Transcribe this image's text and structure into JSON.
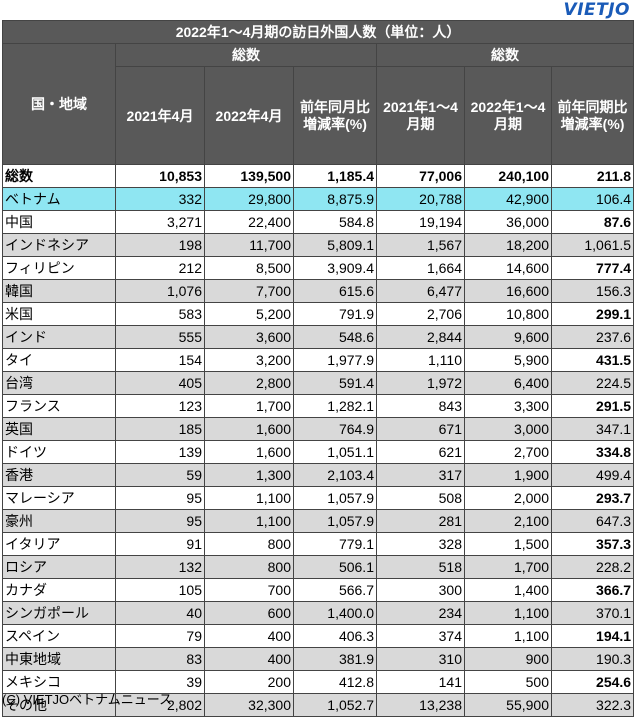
{
  "logo": "VIETJO",
  "title": "2022年1～4月期の訪日外国人数（単位：人）",
  "headers": {
    "region": "国・地域",
    "group_month": "総数",
    "group_period": "総数",
    "c1": "2021年4月",
    "c2": "2022年4月",
    "c3": "前年同月比増減率(%)",
    "c4": "2021年1～4月期",
    "c5": "2022年1～4月期",
    "c6": "前年同期比増減率(%)"
  },
  "rows": [
    {
      "name": "総数",
      "v1": "10,853",
      "v2": "139,500",
      "v3": "1,185.4",
      "v4": "77,006",
      "v5": "240,100",
      "v6": "211.8",
      "style": "total",
      "b6": true
    },
    {
      "name": "ベトナム",
      "v1": "332",
      "v2": "29,800",
      "v3": "8,875.9",
      "v4": "20,788",
      "v5": "42,900",
      "v6": "106.4",
      "style": "viet",
      "b6": false
    },
    {
      "name": "中国",
      "v1": "3,271",
      "v2": "22,400",
      "v3": "584.8",
      "v4": "19,194",
      "v5": "36,000",
      "v6": "87.6",
      "style": "white",
      "b6": true
    },
    {
      "name": "インドネシア",
      "v1": "198",
      "v2": "11,700",
      "v3": "5,809.1",
      "v4": "1,567",
      "v5": "18,200",
      "v6": "1,061.5",
      "style": "gray",
      "b6": false
    },
    {
      "name": "フィリピン",
      "v1": "212",
      "v2": "8,500",
      "v3": "3,909.4",
      "v4": "1,664",
      "v5": "14,600",
      "v6": "777.4",
      "style": "white",
      "b6": true
    },
    {
      "name": "韓国",
      "v1": "1,076",
      "v2": "7,700",
      "v3": "615.6",
      "v4": "6,477",
      "v5": "16,600",
      "v6": "156.3",
      "style": "gray",
      "b6": false
    },
    {
      "name": "米国",
      "v1": "583",
      "v2": "5,200",
      "v3": "791.9",
      "v4": "2,706",
      "v5": "10,800",
      "v6": "299.1",
      "style": "white",
      "b6": true
    },
    {
      "name": "インド",
      "v1": "555",
      "v2": "3,600",
      "v3": "548.6",
      "v4": "2,844",
      "v5": "9,600",
      "v6": "237.6",
      "style": "gray",
      "b6": false
    },
    {
      "name": "タイ",
      "v1": "154",
      "v2": "3,200",
      "v3": "1,977.9",
      "v4": "1,110",
      "v5": "5,900",
      "v6": "431.5",
      "style": "white",
      "b6": true
    },
    {
      "name": "台湾",
      "v1": "405",
      "v2": "2,800",
      "v3": "591.4",
      "v4": "1,972",
      "v5": "6,400",
      "v6": "224.5",
      "style": "gray",
      "b6": false
    },
    {
      "name": "フランス",
      "v1": "123",
      "v2": "1,700",
      "v3": "1,282.1",
      "v4": "843",
      "v5": "3,300",
      "v6": "291.5",
      "style": "white",
      "b6": true
    },
    {
      "name": "英国",
      "v1": "185",
      "v2": "1,600",
      "v3": "764.9",
      "v4": "671",
      "v5": "3,000",
      "v6": "347.1",
      "style": "gray",
      "b6": false
    },
    {
      "name": "ドイツ",
      "v1": "139",
      "v2": "1,600",
      "v3": "1,051.1",
      "v4": "621",
      "v5": "2,700",
      "v6": "334.8",
      "style": "white",
      "b6": true
    },
    {
      "name": "香港",
      "v1": "59",
      "v2": "1,300",
      "v3": "2,103.4",
      "v4": "317",
      "v5": "1,900",
      "v6": "499.4",
      "style": "gray",
      "b6": false
    },
    {
      "name": "マレーシア",
      "v1": "95",
      "v2": "1,100",
      "v3": "1,057.9",
      "v4": "508",
      "v5": "2,000",
      "v6": "293.7",
      "style": "white",
      "b6": true
    },
    {
      "name": "豪州",
      "v1": "95",
      "v2": "1,100",
      "v3": "1,057.9",
      "v4": "281",
      "v5": "2,100",
      "v6": "647.3",
      "style": "gray",
      "b6": false
    },
    {
      "name": "イタリア",
      "v1": "91",
      "v2": "800",
      "v3": "779.1",
      "v4": "328",
      "v5": "1,500",
      "v6": "357.3",
      "style": "white",
      "b6": true
    },
    {
      "name": "ロシア",
      "v1": "132",
      "v2": "800",
      "v3": "506.1",
      "v4": "518",
      "v5": "1,700",
      "v6": "228.2",
      "style": "gray",
      "b6": false
    },
    {
      "name": "カナダ",
      "v1": "105",
      "v2": "700",
      "v3": "566.7",
      "v4": "300",
      "v5": "1,400",
      "v6": "366.7",
      "style": "white",
      "b6": true
    },
    {
      "name": "シンガポール",
      "v1": "40",
      "v2": "600",
      "v3": "1,400.0",
      "v4": "234",
      "v5": "1,100",
      "v6": "370.1",
      "style": "gray",
      "b6": false
    },
    {
      "name": "スペイン",
      "v1": "79",
      "v2": "400",
      "v3": "406.3",
      "v4": "374",
      "v5": "1,100",
      "v6": "194.1",
      "style": "white",
      "b6": true
    },
    {
      "name": "中東地域",
      "v1": "83",
      "v2": "400",
      "v3": "381.9",
      "v4": "310",
      "v5": "900",
      "v6": "190.3",
      "style": "gray",
      "b6": false
    },
    {
      "name": "メキシコ",
      "v1": "39",
      "v2": "200",
      "v3": "412.8",
      "v4": "141",
      "v5": "500",
      "v6": "254.6",
      "style": "white",
      "b6": true
    },
    {
      "name": "その他",
      "v1": "2,802",
      "v2": "32,300",
      "v3": "1,052.7",
      "v4": "13,238",
      "v5": "55,900",
      "v6": "322.3",
      "style": "gray",
      "b6": false
    }
  ],
  "footer": "(C) VIETJOベトナムニュース"
}
